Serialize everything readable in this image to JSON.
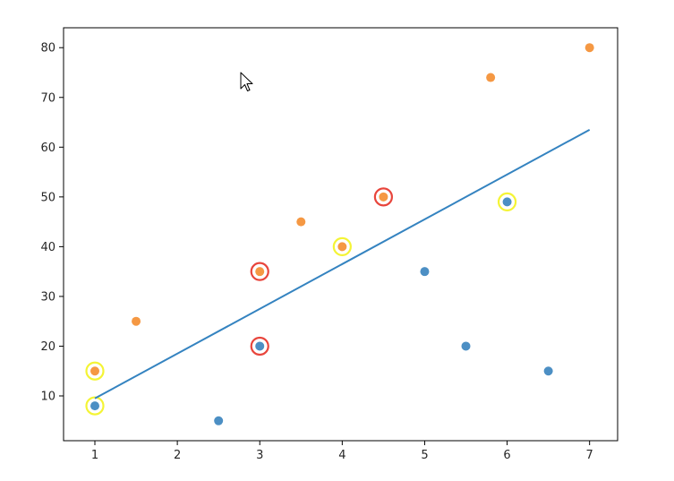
{
  "chart_data": {
    "type": "scatter",
    "title": "",
    "xlabel": "",
    "ylabel": "",
    "xlim": [
      0.62,
      7.34
    ],
    "ylim": [
      1,
      84
    ],
    "xticks": [
      1,
      2,
      3,
      4,
      5,
      6,
      7
    ],
    "yticks": [
      10,
      20,
      30,
      40,
      50,
      60,
      70,
      80
    ],
    "colors": {
      "blue": "#4c8fc4",
      "orange": "#f59843",
      "line": "#3483c0",
      "red_highlight": "#e8453c",
      "yellow_highlight": "#f4f435"
    },
    "series": [
      {
        "color": "blue",
        "points": [
          {
            "x": 1.0,
            "y": 8
          },
          {
            "x": 2.5,
            "y": 5
          },
          {
            "x": 3.0,
            "y": 20
          },
          {
            "x": 5.0,
            "y": 35
          },
          {
            "x": 5.5,
            "y": 20
          },
          {
            "x": 6.0,
            "y": 49
          },
          {
            "x": 6.5,
            "y": 15
          }
        ]
      },
      {
        "color": "orange",
        "points": [
          {
            "x": 1.0,
            "y": 15
          },
          {
            "x": 1.5,
            "y": 25
          },
          {
            "x": 3.0,
            "y": 35
          },
          {
            "x": 3.5,
            "y": 45
          },
          {
            "x": 4.0,
            "y": 40
          },
          {
            "x": 4.5,
            "y": 50
          },
          {
            "x": 5.8,
            "y": 74
          },
          {
            "x": 7.0,
            "y": 80
          }
        ]
      }
    ],
    "trend_line": {
      "x": [
        1.0,
        7.0
      ],
      "y": [
        9.5,
        63.5
      ]
    },
    "highlights": [
      {
        "x": 3.0,
        "y": 35,
        "color": "red_highlight"
      },
      {
        "x": 3.0,
        "y": 20,
        "color": "red_highlight"
      },
      {
        "x": 4.5,
        "y": 50,
        "color": "red_highlight"
      },
      {
        "x": 1.0,
        "y": 15,
        "color": "yellow_highlight"
      },
      {
        "x": 1.0,
        "y": 8,
        "color": "yellow_highlight"
      },
      {
        "x": 4.0,
        "y": 40,
        "color": "yellow_highlight"
      },
      {
        "x": 6.0,
        "y": 49,
        "color": "yellow_highlight"
      }
    ],
    "grid": false,
    "legend": "none"
  },
  "cursor": {
    "icon": "mouse-pointer-icon"
  }
}
